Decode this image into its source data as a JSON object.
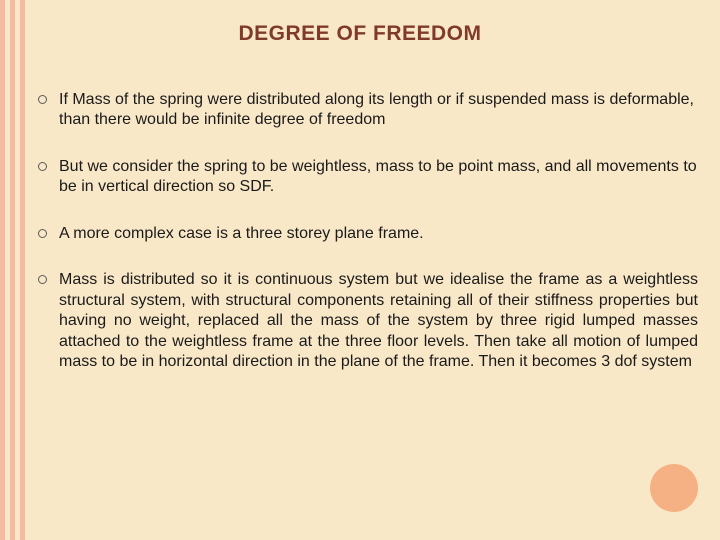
{
  "slide": {
    "title": "DEGREE OF FREEDOM",
    "background_color": "#f9e8c8",
    "stripe_color": "#f4bba0",
    "title_color": "#7f3a2c",
    "text_color": "#1a1a1a",
    "circle_color": "#f5b183",
    "bullets": [
      {
        "text": "If Mass of the spring were distributed along its length or if suspended mass is deformable, than there would be infinite degree of freedom",
        "justify": false
      },
      {
        "text": "But we consider the spring to be weightless, mass to be  point mass, and all movements to be in vertical direction so SDF.",
        "justify": false
      },
      {
        "text": "A more complex case is a three storey plane frame.",
        "justify": false
      },
      {
        "text": "Mass is distributed so it is continuous system but we idealise the frame as a weightless structural system, with structural components retaining all of their stiffness properties but having no weight, replaced all the mass of the system by three rigid lumped masses attached to the weightless frame at the three floor levels. Then take all motion of lumped mass to be in horizontal direction in the plane of the frame. Then it becomes 3 dof system",
        "justify": true
      }
    ]
  }
}
